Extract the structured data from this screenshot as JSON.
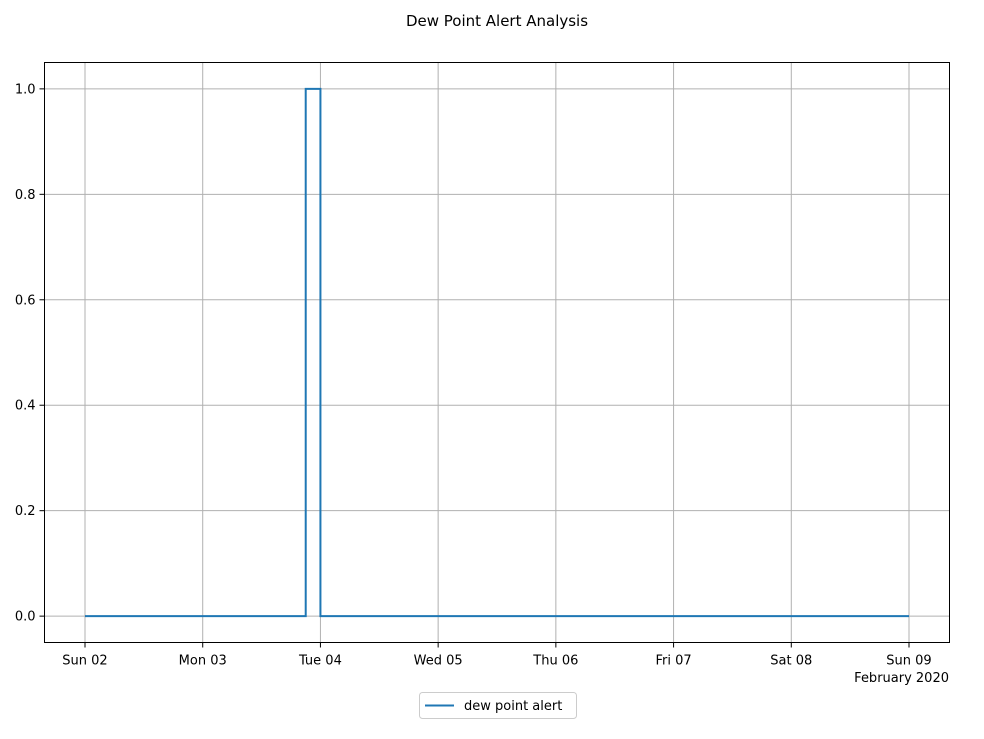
{
  "chart_data": {
    "type": "line",
    "drawstyle": "steps-post",
    "title": "Dew Point Alert Analysis",
    "xlabel": "",
    "ylabel": "",
    "x_axis": {
      "type": "date",
      "range": [
        "2020-02-02",
        "2020-02-09"
      ],
      "ticks": [
        {
          "date": "2020-02-02",
          "label": "Sun 02"
        },
        {
          "date": "2020-02-03",
          "label": "Mon 03"
        },
        {
          "date": "2020-02-04",
          "label": "Tue 04"
        },
        {
          "date": "2020-02-05",
          "label": "Wed 05"
        },
        {
          "date": "2020-02-06",
          "label": "Thu 06"
        },
        {
          "date": "2020-02-07",
          "label": "Fri 07"
        },
        {
          "date": "2020-02-08",
          "label": "Sat 08"
        },
        {
          "date": "2020-02-09",
          "label": "Sun 09"
        }
      ],
      "offset_label": "February 2020"
    },
    "y_axis": {
      "ylim": [
        -0.05,
        1.05
      ],
      "ticks": [
        0.0,
        0.2,
        0.4,
        0.6,
        0.8,
        1.0
      ],
      "tick_labels": [
        "0.0",
        "0.2",
        "0.4",
        "0.6",
        "0.8",
        "1.0"
      ]
    },
    "grid": true,
    "legend_position": "bottom-center",
    "series": [
      {
        "name": "dew point alert",
        "color": "#1f77b4",
        "points": [
          {
            "x": "2020-02-02T00:00",
            "y": 0
          },
          {
            "x": "2020-02-03T21:00",
            "y": 1
          },
          {
            "x": "2020-02-04T00:00",
            "y": 0
          },
          {
            "x": "2020-02-09T00:00",
            "y": 0
          }
        ]
      }
    ]
  }
}
